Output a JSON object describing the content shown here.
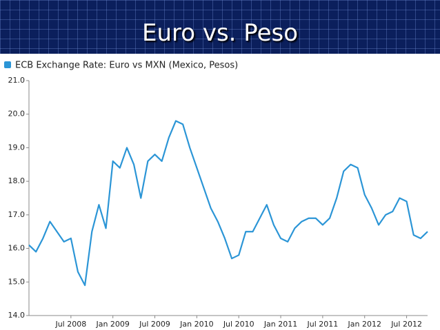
{
  "chart_data": {
    "type": "line",
    "title": "Euro vs. Peso",
    "x": [
      "2008-01",
      "2008-02",
      "2008-03",
      "2008-04",
      "2008-05",
      "2008-06",
      "2008-07",
      "2008-08",
      "2008-09",
      "2008-10",
      "2008-11",
      "2008-12",
      "2009-01",
      "2009-02",
      "2009-03",
      "2009-04",
      "2009-05",
      "2009-06",
      "2009-07",
      "2009-08",
      "2009-09",
      "2009-10",
      "2009-11",
      "2009-12",
      "2010-01",
      "2010-02",
      "2010-03",
      "2010-04",
      "2010-05",
      "2010-06",
      "2010-07",
      "2010-08",
      "2010-09",
      "2010-10",
      "2010-11",
      "2010-12",
      "2011-01",
      "2011-02",
      "2011-03",
      "2011-04",
      "2011-05",
      "2011-06",
      "2011-07",
      "2011-08",
      "2011-09",
      "2011-10",
      "2011-11",
      "2011-12",
      "2012-01",
      "2012-02",
      "2012-03",
      "2012-04",
      "2012-05",
      "2012-06",
      "2012-07",
      "2012-08",
      "2012-09",
      "2012-10"
    ],
    "series": [
      {
        "name": "ECB Exchange Rate: Euro vs MXN (Mexico, Pesos)",
        "color": "#2b95d6",
        "values": [
          16.1,
          15.9,
          16.3,
          16.8,
          16.5,
          16.2,
          16.3,
          15.3,
          14.9,
          16.5,
          17.3,
          16.6,
          18.6,
          18.4,
          19.0,
          18.5,
          17.5,
          18.6,
          18.8,
          18.6,
          19.3,
          19.8,
          19.7,
          19.0,
          18.4,
          17.8,
          17.2,
          16.8,
          16.3,
          15.7,
          15.8,
          16.5,
          16.5,
          16.9,
          17.3,
          16.7,
          16.3,
          16.2,
          16.6,
          16.8,
          16.9,
          16.9,
          16.7,
          16.9,
          17.5,
          18.3,
          18.5,
          18.4,
          17.6,
          17.2,
          16.7,
          17.0,
          17.1,
          17.5,
          17.4,
          16.4,
          16.3,
          16.5
        ]
      }
    ],
    "xlim": [
      "2008-01",
      "2012-10"
    ],
    "xticks": [
      {
        "value": "2008-07",
        "label": "Jul 2008"
      },
      {
        "value": "2009-01",
        "label": "Jan 2009"
      },
      {
        "value": "2009-07",
        "label": "Jul 2009"
      },
      {
        "value": "2010-01",
        "label": "Jan 2010"
      },
      {
        "value": "2010-07",
        "label": "Jul 2010"
      },
      {
        "value": "2011-01",
        "label": "Jan 2011"
      },
      {
        "value": "2011-07",
        "label": "Jul 2011"
      },
      {
        "value": "2012-01",
        "label": "Jan 2012"
      },
      {
        "value": "2012-07",
        "label": "Jul 2012"
      }
    ],
    "ylim": [
      14,
      21
    ],
    "yticks": [
      {
        "value": 14,
        "label": "14.0"
      },
      {
        "value": 15,
        "label": "15.0"
      },
      {
        "value": 16,
        "label": "16.0"
      },
      {
        "value": 17,
        "label": "17.0"
      },
      {
        "value": 18,
        "label": "18.0"
      },
      {
        "value": 19,
        "label": "19.0"
      },
      {
        "value": 20,
        "label": "20.0"
      },
      {
        "value": 21,
        "label": "21.0"
      }
    ],
    "grid": false,
    "legend": "top-left"
  }
}
